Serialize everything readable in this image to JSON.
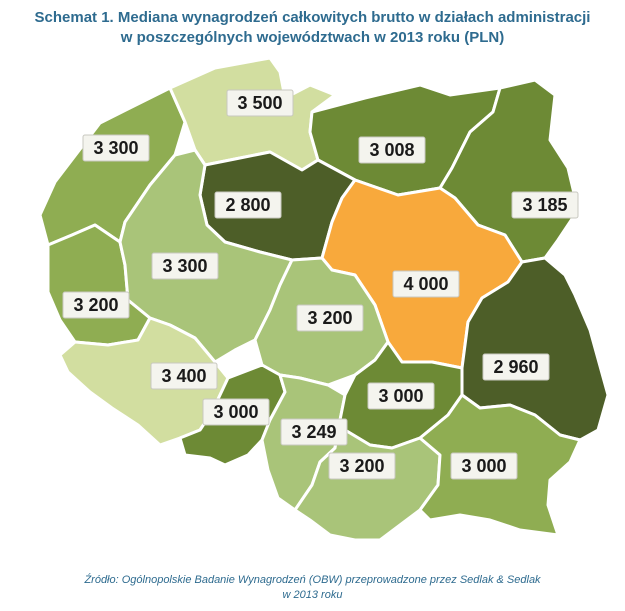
{
  "title": {
    "line1": "Schemat 1. Mediana wynagrodzeń całkowitych brutto w działach administracji",
    "line2": "w poszczególnych województwach w 2013 roku (PLN)"
  },
  "colors": {
    "darkest": "#4d5e28",
    "dark": "#6d8a35",
    "medium": "#8fad52",
    "light": "#a9c479",
    "pale": "#d2dea0",
    "highlight": "#f8a93c"
  },
  "regions": [
    {
      "name": "zachodniopomorskie",
      "value": "3 300",
      "color": "medium"
    },
    {
      "name": "pomorskie",
      "value": "3 500",
      "color": "pale"
    },
    {
      "name": "warminsko-mazurskie",
      "value": "3 008",
      "color": "dark"
    },
    {
      "name": "podlaskie",
      "value": "3 185",
      "color": "dark"
    },
    {
      "name": "kujawsko-pomorskie",
      "value": "2 800",
      "color": "darkest"
    },
    {
      "name": "lubuskie",
      "value": "3 200",
      "color": "medium"
    },
    {
      "name": "wielkopolskie",
      "value": "3 300",
      "color": "light"
    },
    {
      "name": "mazowieckie",
      "value": "4 000",
      "color": "highlight"
    },
    {
      "name": "lodzkie",
      "value": "3 200",
      "color": "light"
    },
    {
      "name": "dolnoslaskie",
      "value": "3 400",
      "color": "pale"
    },
    {
      "name": "opolskie",
      "value": "3 000",
      "color": "dark"
    },
    {
      "name": "slaskie",
      "value": "3 249",
      "color": "light"
    },
    {
      "name": "swietokrzyskie",
      "value": "3 000",
      "color": "dark"
    },
    {
      "name": "lubelskie",
      "value": "2 960",
      "color": "darkest"
    },
    {
      "name": "malopolskie",
      "value": "3 200",
      "color": "light"
    },
    {
      "name": "podkarpackie",
      "value": "3 000",
      "color": "medium"
    }
  ],
  "source": {
    "line1": "Źródło: Ogólnopolskie Badanie Wynagrodzeń (OBW) przeprowadzone przez Sedlak & Sedlak",
    "line2": "w 2013 roku"
  }
}
